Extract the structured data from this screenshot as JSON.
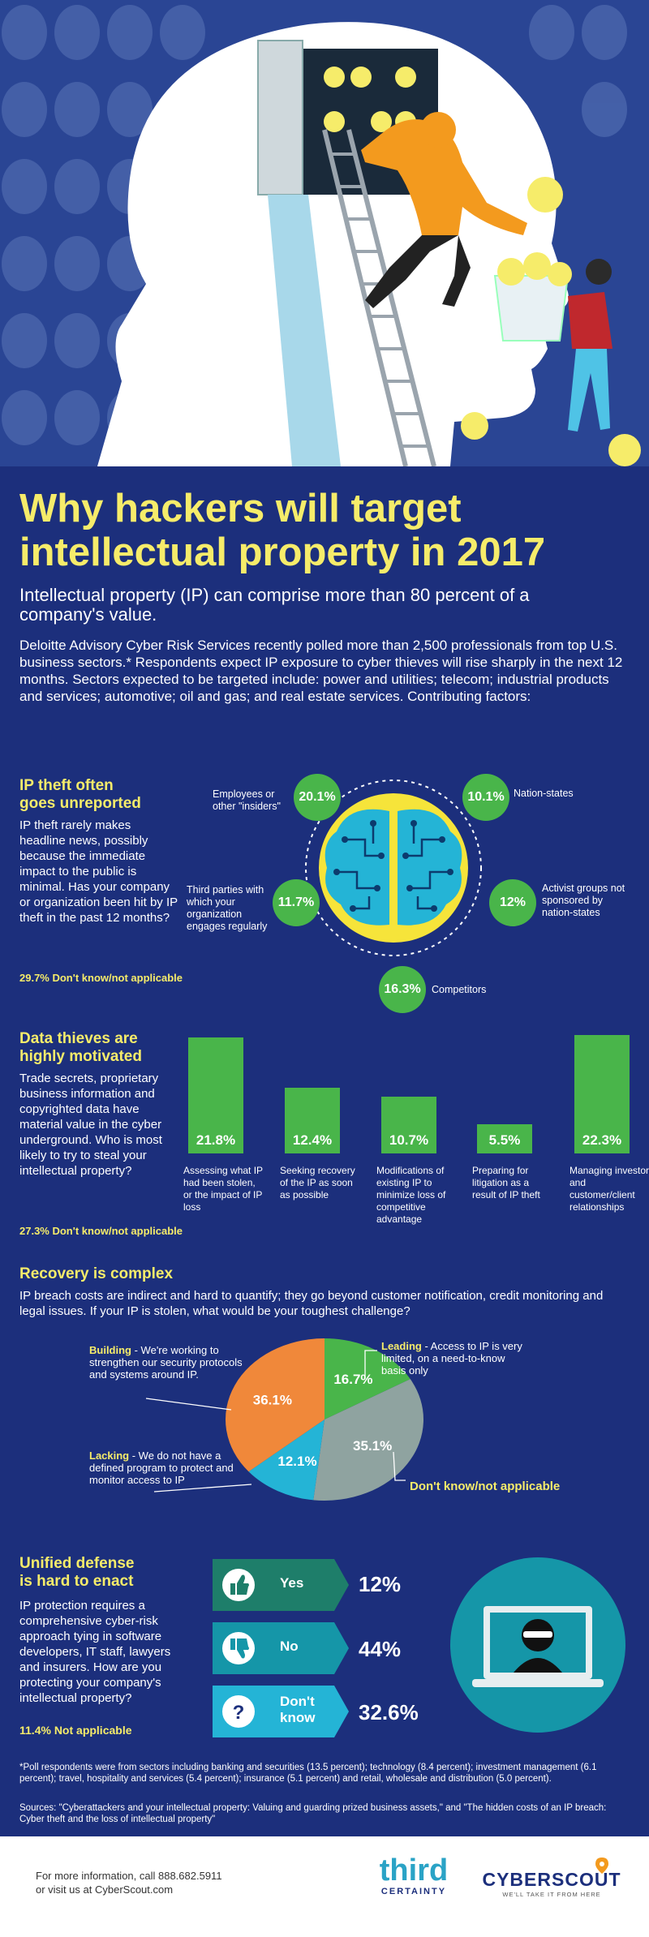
{
  "header": {
    "title": "Why hackers will target intellectual property in 2017",
    "subtitle": "Intellectual property (IP) can comprise more than 80 percent of a company's value.",
    "intro": "Deloitte Advisory Cyber Risk Services recently polled more than 2,500 professionals from top U.S. business sectors.* Respondents expect IP exposure to cyber thieves will rise sharply in the next 12 months. Sectors expected to be targeted include: power and utilities; telecom; industrial products and services; automotive; oil and gas; and real estate services. Contributing factors:"
  },
  "ip_theft": {
    "title_line1": "IP theft often",
    "title_line2": "goes unreported",
    "body": "IP theft rarely makes headline news, possibly because the immediate impact to the public is minimal. Has your company or organization been hit by IP theft in the past 12 months?",
    "note": "29.7% Don't know/not applicable",
    "items": [
      {
        "pct": "20.1%",
        "label": "Employees or other \"insiders\""
      },
      {
        "pct": "10.1%",
        "label": "Nation-states"
      },
      {
        "pct": "11.7%",
        "label": "Third parties with which your organization engages regularly"
      },
      {
        "pct": "12%",
        "label": "Activist groups not sponsored by nation-states"
      },
      {
        "pct": "16.3%",
        "label": "Competitors"
      }
    ]
  },
  "motivated": {
    "title_line1": "Data thieves are",
    "title_line2": "highly motivated",
    "body": "Trade secrets, proprietary business information and copyrighted data have material value in the cyber underground. Who is most likely to try to steal your intellectual property?",
    "note": "27.3% Don't know/not applicable",
    "chart_data": {
      "type": "bar",
      "categories": [
        "Assessing what IP had been stolen, or the impact of IP loss",
        "Seeking recovery of the IP as soon as possible",
        "Modifications of existing IP to minimize loss of competitive advantage",
        "Preparing for litigation as a result of IP theft",
        "Managing investor and customer/client relationships"
      ],
      "values": [
        21.8,
        12.4,
        10.7,
        5.5,
        22.3
      ],
      "labels": [
        "21.8%",
        "12.4%",
        "10.7%",
        "5.5%",
        "22.3%"
      ],
      "ylim": [
        0,
        22.3
      ],
      "color": "#49b54a"
    }
  },
  "recovery": {
    "title": "Recovery is complex",
    "body": "IP breach costs are indirect and hard to quantify; they go beyond customer notification, credit monitoring and legal issues. If your IP is stolen, what would be your toughest challenge?",
    "chart_data": {
      "type": "pie",
      "slices": [
        {
          "name": "Leading",
          "value": 16.7,
          "label": "16.7%",
          "color": "#49b54a"
        },
        {
          "name": "Don't know/not applicable",
          "value": 35.1,
          "label": "35.1%",
          "color": "#8fa3a0"
        },
        {
          "name": "Lacking",
          "value": 12.1,
          "label": "12.1%",
          "color": "#24b4d6"
        },
        {
          "name": "Building",
          "value": 36.1,
          "label": "36.1%",
          "color": "#f0883a"
        }
      ]
    },
    "legend": {
      "building_title": "Building",
      "building_text": " - We're working to strengthen our security protocols and systems around IP.",
      "leading_title": "Leading",
      "leading_text": " - Access to IP is very limited, on a need-to-know basis only",
      "lacking_title": "Lacking",
      "lacking_text": " - We do not have a defined program to protect and monitor access to IP",
      "dontknow_title": "Don't know/not applicable"
    }
  },
  "defense": {
    "title_line1": "Unified defense",
    "title_line2": "is hard to enact",
    "body": "IP protection requires a comprehensive cyber-risk approach tying in software developers, IT staff, lawyers and insurers. How are you protecting your company's intellectual property?",
    "note": "11.4% Not applicable",
    "rows": [
      {
        "label": "Yes",
        "value": "12%",
        "color": "#1e7e6a"
      },
      {
        "label": "No",
        "value": "44%",
        "color": "#1596a8"
      },
      {
        "label_line1": "Don't",
        "label_line2": "know",
        "value": "32.6%",
        "color": "#24b4d6"
      }
    ]
  },
  "footnotes": {
    "poll": "*Poll respondents were from sectors including banking and securities (13.5 percent); technology (8.4 percent); investment management (6.1 percent); travel, hospitality and services (5.4 percent); insurance (5.1 percent) and retail, wholesale and distribution (5.0 percent).",
    "sources": "Sources: \"Cyberattackers and your intellectual property: Valuing and guarding prized business assets,\" and \"The hidden costs of an IP breach: Cyber theft and the loss of intellectual property\""
  },
  "footer": {
    "contact_line1": "For more information, call 888.682.5911",
    "contact_line2": "or visit us at CyberScout.com",
    "logo1_top": "third",
    "logo1_bottom": "CERTAINTY",
    "logo2": "CYBERSCOUT",
    "logo2_tagline": "WE'LL TAKE IT FROM HERE"
  },
  "colors": {
    "background": "#1c2f7c",
    "accent_yellow": "#f6ec6a",
    "green": "#49b54a"
  }
}
